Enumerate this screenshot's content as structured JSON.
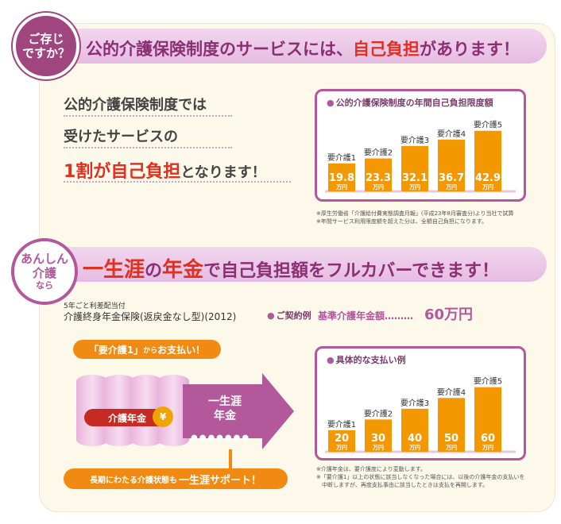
{
  "section1": {
    "badge": [
      "ご存じ",
      "ですか？"
    ],
    "headline_pre": "公的介護保険制度のサービスには、",
    "headline_em": "自己負担",
    "headline_post": "があります！",
    "body_line1": "公的介護保険制度では",
    "body_line2": "受けたサービスの",
    "body_line3_em": "1割が自己負担",
    "body_line3_post": "となります！",
    "note_line1": "※厚生労働省「介護給付費実態調査月報」(平成23年8月審査分)より当社で試算",
    "note_line2": "※年間サービス利用限度額を超えた分は、全額自己負担になります。"
  },
  "section2": {
    "badge": [
      "あんしん",
      "介護",
      "なら"
    ],
    "headline_em1": "一生涯",
    "headline_mid": "の",
    "headline_em2": "年金",
    "headline_post": "で自己負担額をフルカバーできます！",
    "product_small": "5年ごと利差配当付",
    "product_name": "介護終身年金保険(返戻金なし型)(2012)",
    "contract_label": "ご契約例",
    "base_label": "基準介護年金額………",
    "base_amount": "60万円",
    "pill_em": "「要介護1」",
    "pill_mid": "から",
    "pill_post": "お支払い！",
    "kaigo_label": "介護年金",
    "yen_icon": "¥",
    "arrow_line1": "一生涯",
    "arrow_line2": "年金",
    "arrow_dots": "●●●●●●●",
    "support_pre": "長期にわたる介護状態も",
    "support_em": "一生涯サポート！",
    "note_line1": "※介護年金は、要介護度により変動します。",
    "note_line2": "※「要介護1」以上の状態に該当しなくなった場合には、以後の介護年金の支払いを",
    "note_line3": "　中断しますが、再度支払事由に該当したときは支払を再開します。"
  },
  "chart_data": [
    {
      "type": "bar",
      "title": "公的介護保険制度の年間自己負担限度額",
      "categories": [
        "要介護1",
        "要介護2",
        "要介護3",
        "要介護4",
        "要介護5"
      ],
      "values": [
        19.8,
        23.3,
        32.1,
        36.7,
        42.9
      ],
      "value_labels": [
        "19.8",
        "23.3",
        "32.1",
        "36.7",
        "42.9"
      ],
      "unit": "万円",
      "ylim": [
        0,
        45
      ]
    },
    {
      "type": "bar",
      "title": "具体的な支払い例",
      "categories": [
        "要介護1",
        "要介護2",
        "要介護3",
        "要介護4",
        "要介護5"
      ],
      "values": [
        20,
        30,
        40,
        50,
        60
      ],
      "value_labels": [
        "20",
        "30",
        "40",
        "50",
        "60"
      ],
      "unit": "万円",
      "ylim": [
        0,
        62
      ]
    }
  ],
  "colors": {
    "purple": "#b2589b",
    "orange": "#f39800",
    "red": "#e0301f"
  }
}
